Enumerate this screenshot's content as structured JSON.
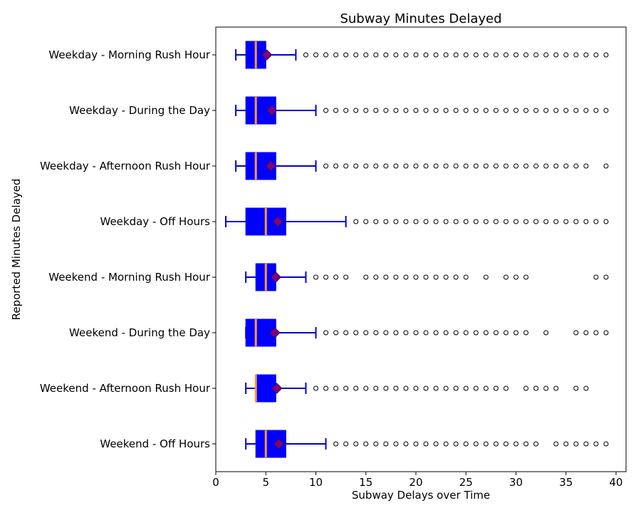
{
  "chart_data": {
    "type": "boxplot",
    "title": "Subway Minutes Delayed",
    "xlabel": "Subway Delays over Time",
    "ylabel": "Reported Minutes Delayed",
    "xlim": [
      0,
      41
    ],
    "xticks": [
      0,
      5,
      10,
      15,
      20,
      25,
      30,
      35,
      40
    ],
    "orientation": "horizontal",
    "grid": false,
    "colors": {
      "box_fill": "#0000ff",
      "whisker": "#0000cc",
      "median": "#ff9933",
      "mean_marker": "#800080",
      "mean_marker_edge": "#3b0a57",
      "outlier_edge": "#000000"
    },
    "categories": [
      "Weekday - Morning Rush Hour",
      "Weekday - During the Day",
      "Weekday - Afternoon Rush Hour",
      "Weekday - Off Hours",
      "Weekend - Morning Rush Hour",
      "Weekend - During the Day",
      "Weekend - Afternoon Rush Hour",
      "Weekend - Off Hours"
    ],
    "boxes": [
      {
        "label": "Weekday - Morning Rush Hour",
        "whisker_low": 2,
        "q1": 3,
        "median": 4,
        "q3": 5,
        "whisker_high": 8,
        "mean": 5.1,
        "outliers": [
          9,
          10,
          11,
          12,
          13,
          14,
          15,
          16,
          17,
          18,
          19,
          20,
          21,
          22,
          23,
          24,
          25,
          26,
          27,
          28,
          29,
          30,
          31,
          32,
          33,
          34,
          35,
          36,
          37,
          38,
          39
        ]
      },
      {
        "label": "Weekday - During the Day",
        "whisker_low": 2,
        "q1": 3,
        "median": 4,
        "q3": 6,
        "whisker_high": 10,
        "mean": 5.6,
        "outliers": [
          11,
          12,
          13,
          14,
          15,
          16,
          17,
          18,
          19,
          20,
          21,
          22,
          23,
          24,
          25,
          26,
          27,
          28,
          29,
          30,
          31,
          32,
          33,
          34,
          35,
          36,
          37,
          38,
          39
        ]
      },
      {
        "label": "Weekday - Afternoon Rush Hour",
        "whisker_low": 2,
        "q1": 3,
        "median": 4,
        "q3": 6,
        "whisker_high": 10,
        "mean": 5.5,
        "outliers": [
          11,
          12,
          13,
          14,
          15,
          16,
          17,
          18,
          19,
          20,
          21,
          22,
          23,
          24,
          25,
          26,
          27,
          28,
          29,
          30,
          31,
          32,
          33,
          34,
          35,
          36,
          37,
          39
        ]
      },
      {
        "label": "Weekday - Off Hours",
        "whisker_low": 1,
        "q1": 3,
        "median": 5,
        "q3": 7,
        "whisker_high": 13,
        "mean": 6.2,
        "outliers": [
          14,
          15,
          16,
          17,
          18,
          19,
          20,
          21,
          22,
          23,
          24,
          25,
          26,
          27,
          28,
          29,
          30,
          31,
          32,
          33,
          34,
          35,
          36,
          37,
          38,
          39
        ]
      },
      {
        "label": "Weekend - Morning Rush Hour",
        "whisker_low": 3,
        "q1": 4,
        "median": 5,
        "q3": 6,
        "whisker_high": 9,
        "mean": 6.0,
        "outliers": [
          10,
          11,
          12,
          13,
          15,
          16,
          17,
          18,
          19,
          20,
          21,
          22,
          23,
          24,
          25,
          27,
          29,
          30,
          31,
          38,
          39
        ]
      },
      {
        "label": "Weekend - During the Day",
        "whisker_low": 3,
        "q1": 3,
        "median": 4,
        "q3": 6,
        "whisker_high": 10,
        "mean": 5.9,
        "outliers": [
          11,
          12,
          13,
          14,
          15,
          16,
          17,
          18,
          19,
          20,
          21,
          22,
          23,
          24,
          25,
          26,
          27,
          28,
          29,
          30,
          31,
          33,
          36,
          37,
          38,
          39
        ]
      },
      {
        "label": "Weekend - Afternoon Rush Hour",
        "whisker_low": 3,
        "q1": 4,
        "median": 4,
        "q3": 6,
        "whisker_high": 9,
        "mean": 6.1,
        "outliers": [
          10,
          11,
          12,
          13,
          14,
          15,
          16,
          17,
          18,
          19,
          20,
          21,
          22,
          23,
          24,
          25,
          26,
          27,
          28,
          29,
          31,
          32,
          33,
          34,
          36,
          37
        ]
      },
      {
        "label": "Weekend - Off Hours",
        "whisker_low": 3,
        "q1": 4,
        "median": 5,
        "q3": 7,
        "whisker_high": 11,
        "mean": 6.3,
        "outliers": [
          12,
          13,
          14,
          15,
          16,
          17,
          18,
          19,
          20,
          21,
          22,
          23,
          24,
          25,
          26,
          27,
          28,
          29,
          30,
          31,
          32,
          34,
          35,
          36,
          37,
          38,
          39
        ]
      }
    ]
  }
}
